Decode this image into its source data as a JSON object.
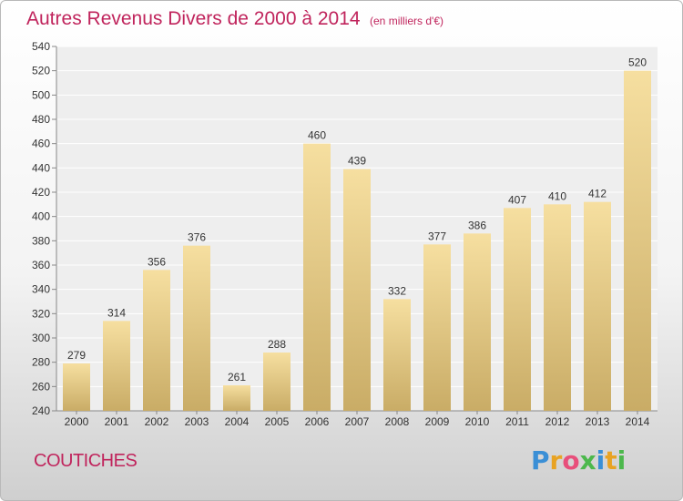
{
  "chart_data": {
    "type": "bar",
    "title": "Autres Revenus Divers de 2000 à 2014",
    "subtitle": "(en milliers d'€)",
    "categories": [
      "2000",
      "2001",
      "2002",
      "2003",
      "2004",
      "2005",
      "2006",
      "2007",
      "2008",
      "2009",
      "2010",
      "2011",
      "2012",
      "2013",
      "2014"
    ],
    "values": [
      279,
      314,
      356,
      376,
      261,
      288,
      460,
      439,
      332,
      377,
      386,
      407,
      410,
      412,
      520
    ],
    "ylim": [
      240,
      540
    ],
    "yticks": [
      240,
      260,
      280,
      300,
      320,
      340,
      360,
      380,
      400,
      420,
      440,
      460,
      480,
      500,
      520,
      540
    ],
    "grid": true,
    "bar_color_top": "#f6dfa0",
    "bar_color_bottom": "#c9ac66"
  },
  "commune": "COUTICHES",
  "logo": {
    "text": "Proxiti",
    "letters": [
      "P",
      "r",
      "o",
      "x",
      "i",
      "t",
      "i"
    ],
    "colors": [
      "#3a8fd6",
      "#e8a323",
      "#e84f7b",
      "#4cb84c",
      "#3a8fd6",
      "#e8a323",
      "#4cb84c"
    ]
  },
  "accent_color": "#c0245c"
}
